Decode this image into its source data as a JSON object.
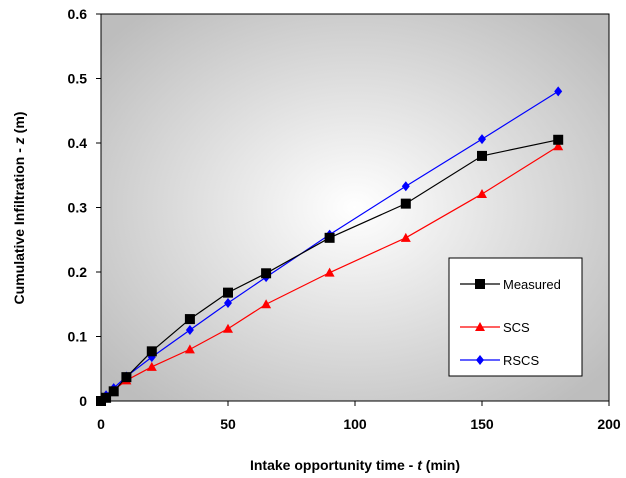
{
  "chart_data": {
    "type": "line",
    "xlabel_prefix": "Intake opportunity time - ",
    "xlabel_var": "t",
    "xlabel_suffix": " (min)",
    "ylabel_prefix": "Cumulative Infiltration - ",
    "ylabel_var": "z",
    "ylabel_suffix": " (m)",
    "xlim": [
      0,
      200
    ],
    "ylim": [
      0,
      0.6
    ],
    "xticks": [
      "0",
      "50",
      "100",
      "150",
      "200"
    ],
    "yticks": [
      "0",
      "0.1",
      "0.2",
      "0.3",
      "0.4",
      "0.5",
      "0.6"
    ],
    "grid": false,
    "legend_position": "bottom-right",
    "series": [
      {
        "name": "Measured",
        "color": "#000000",
        "marker": "square",
        "x": [
          0,
          2,
          5,
          10,
          20,
          35,
          50,
          65,
          90,
          120,
          150,
          180
        ],
        "y": [
          0,
          0.005,
          0.015,
          0.037,
          0.077,
          0.127,
          0.168,
          0.198,
          0.253,
          0.306,
          0.38,
          0.405
        ]
      },
      {
        "name": "SCS",
        "color": "#ff0000",
        "marker": "triangle",
        "x": [
          0,
          2,
          5,
          10,
          20,
          35,
          50,
          65,
          90,
          120,
          150,
          180
        ],
        "y": [
          0,
          0.008,
          0.017,
          0.032,
          0.053,
          0.08,
          0.112,
          0.15,
          0.199,
          0.253,
          0.321,
          0.395
        ]
      },
      {
        "name": "RSCS",
        "color": "#0000ff",
        "marker": "diamond",
        "x": [
          0,
          2,
          5,
          10,
          20,
          35,
          50,
          65,
          90,
          120,
          150,
          180
        ],
        "y": [
          0,
          0.009,
          0.02,
          0.038,
          0.068,
          0.11,
          0.152,
          0.192,
          0.258,
          0.333,
          0.406,
          0.48
        ]
      }
    ]
  }
}
